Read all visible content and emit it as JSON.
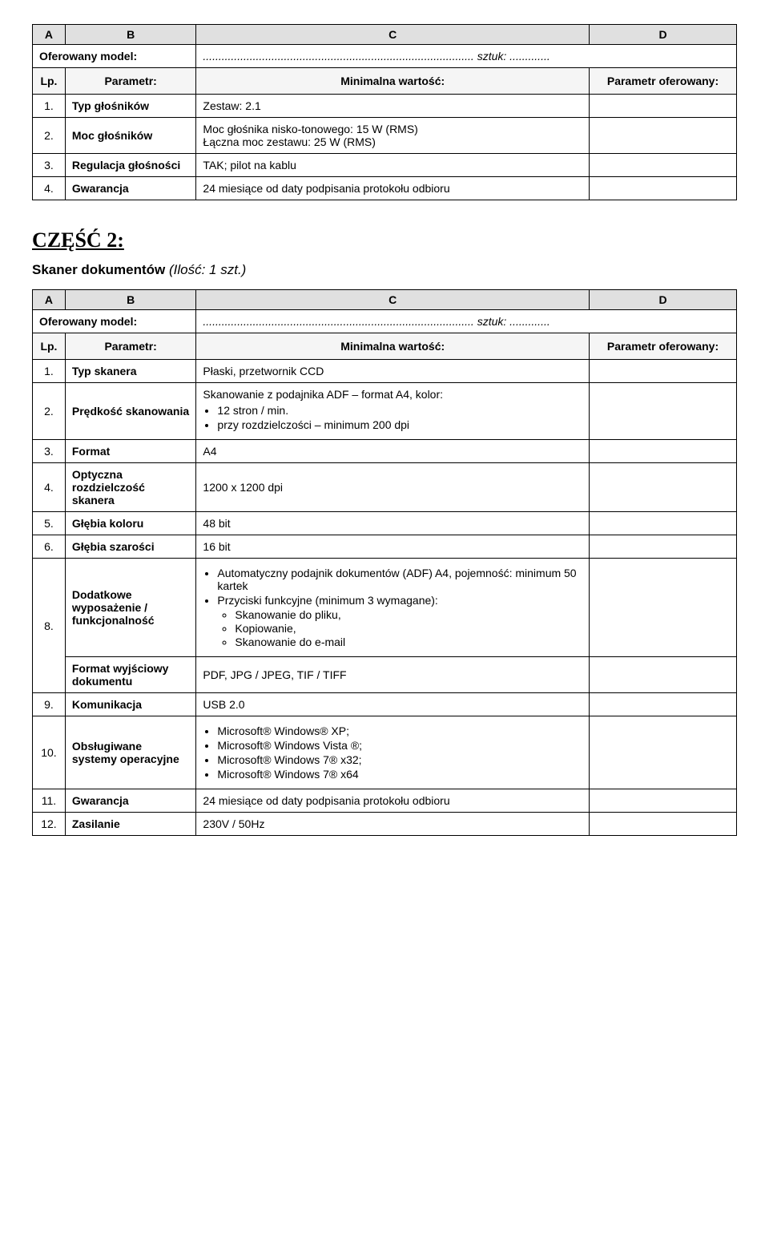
{
  "table1": {
    "hdr": {
      "a": "A",
      "b": "B",
      "c": "C",
      "d": "D"
    },
    "offered_label": "Oferowany model:",
    "dots": ".......................................................................................",
    "sztuk_label": "sztuk:",
    "sztuk_dots": ".............",
    "param_hdr": {
      "lp": "Lp.",
      "param": "Parametr:",
      "min": "Minimalna wartość:",
      "off": "Parametr oferowany:"
    },
    "rows": [
      {
        "lp": "1.",
        "param": "Typ głośników",
        "min": "Zestaw: 2.1"
      },
      {
        "lp": "2.",
        "param": "Moc głośników",
        "min": "Moc głośnika nisko-tonowego: 15 W (RMS)\nŁączna moc  zestawu: 25 W (RMS)"
      },
      {
        "lp": "3.",
        "param": "Regulacja głośności",
        "min": "TAK; pilot na kablu"
      },
      {
        "lp": "4.",
        "param": "Gwarancja",
        "min": "24 miesiące od daty podpisania protokołu odbioru"
      }
    ]
  },
  "section2": {
    "title": "CZĘŚĆ 2:",
    "sub_bold": "Skaner dokumentów ",
    "sub_italic": "(Ilość: 1 szt.)"
  },
  "table2": {
    "hdr": {
      "a": "A",
      "b": "B",
      "c": "C",
      "d": "D"
    },
    "offered_label": "Oferowany model:",
    "dots": ".......................................................................................",
    "sztuk_label": "sztuk:",
    "sztuk_dots": ".............",
    "param_hdr": {
      "lp": "Lp.",
      "param": "Parametr:",
      "min": "Minimalna wartość:",
      "off": "Parametr oferowany:"
    },
    "r1": {
      "lp": "1.",
      "param": "Typ skanera",
      "min": "Płaski, przetwornik CCD"
    },
    "r2": {
      "lp": "2.",
      "param": "Prędkość skanowania",
      "lead": "Skanowanie z podajnika ADF – format A4, kolor:",
      "b1": "12 stron / min.",
      "b2": "przy rozdzielczości – minimum  200 dpi"
    },
    "r3": {
      "lp": "3.",
      "param": "Format",
      "min": "A4"
    },
    "r4": {
      "lp": "4.",
      "param": "Optyczna rozdzielczość skanera",
      "min": "1200 x 1200 dpi"
    },
    "r5": {
      "lp": "5.",
      "param": "Głębia koloru",
      "min": "48 bit"
    },
    "r6": {
      "lp": "6.",
      "param": "Głębia szarości",
      "min": "16 bit"
    },
    "r8": {
      "lp": "8.",
      "param": "Dodatkowe wyposażenie / funkcjonalność",
      "b1": "Automatyczny podajnik dokumentów (ADF) A4, pojemność: minimum 50 kartek",
      "b2": "Przyciski funkcyjne (minimum 3 wymagane):",
      "s1": "Skanowanie do pliku,",
      "s2": "Kopiowanie,",
      "s3": "Skanowanie do e-mail"
    },
    "r8b": {
      "param": "Format wyjściowy dokumentu",
      "min": "PDF, JPG / JPEG, TIF / TIFF"
    },
    "r9": {
      "lp": "9.",
      "param": "Komunikacja",
      "min": "USB 2.0"
    },
    "r10": {
      "lp": "10.",
      "param": "Obsługiwane systemy operacyjne",
      "b1": "Microsoft® Windows® XP;",
      "b2": "Microsoft®  Windows Vista ®;",
      "b3": "Microsoft®  Windows 7® x32;",
      "b4": "Microsoft® Windows 7® x64"
    },
    "r11": {
      "lp": "11.",
      "param": "Gwarancja",
      "min": "24 miesiące od daty podpisania protokołu odbioru"
    },
    "r12": {
      "lp": "12.",
      "param": "Zasilanie",
      "min": "230V / 50Hz"
    }
  }
}
